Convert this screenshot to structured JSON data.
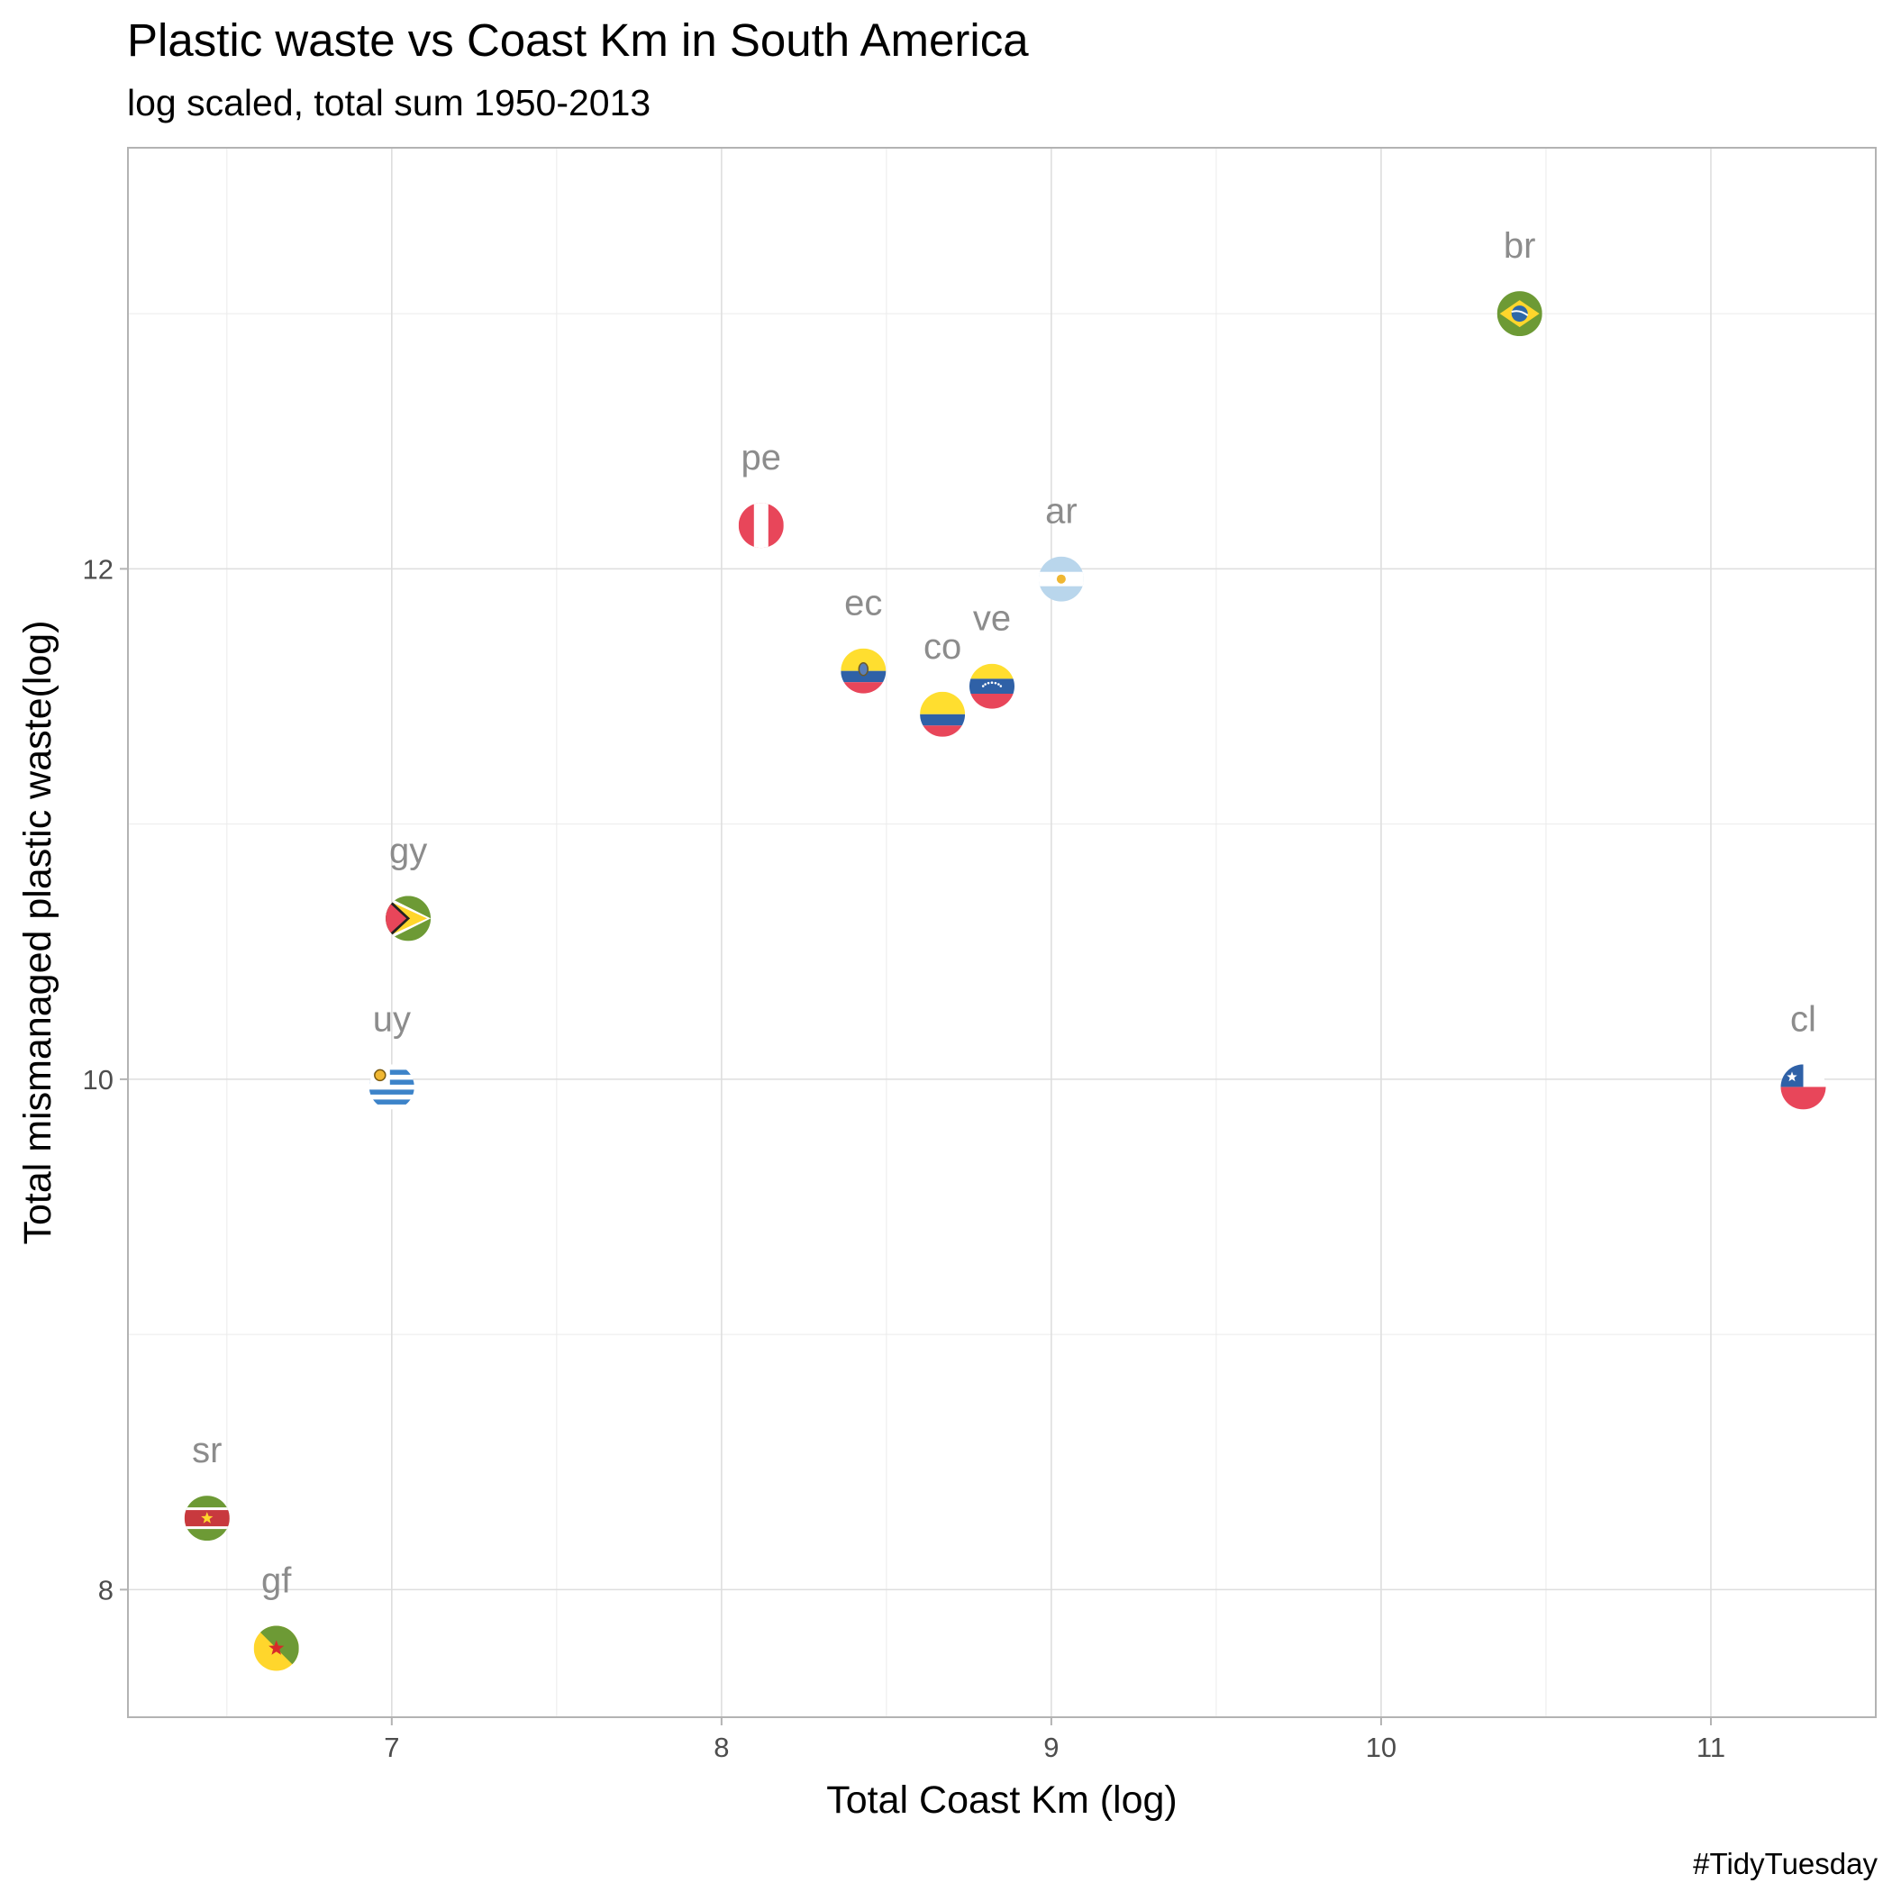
{
  "chart_data": {
    "type": "scatter",
    "title": "Plastic waste vs Coast Km in South America",
    "subtitle": "log scaled, total sum 1950-2013",
    "xlabel": "Total Coast Km (log)",
    "ylabel": "Total mismanaged plastic waste(log)",
    "caption": "#TidyTuesday",
    "xlim": [
      6.2,
      11.5
    ],
    "ylim": [
      7.5,
      13.65
    ],
    "x_ticks": [
      7,
      8,
      9,
      10,
      11
    ],
    "y_ticks": [
      8,
      10,
      12
    ],
    "grid": true,
    "legend": "none",
    "points": [
      {
        "label": "br",
        "x": 10.42,
        "y": 13.0,
        "flag": "brazil-flag-icon"
      },
      {
        "label": "pe",
        "x": 8.12,
        "y": 12.17,
        "flag": "peru-flag-icon"
      },
      {
        "label": "ar",
        "x": 9.03,
        "y": 11.96,
        "flag": "argentina-flag-icon"
      },
      {
        "label": "ec",
        "x": 8.43,
        "y": 11.6,
        "flag": "ecuador-flag-icon"
      },
      {
        "label": "co",
        "x": 8.67,
        "y": 11.43,
        "flag": "colombia-flag-icon"
      },
      {
        "label": "ve",
        "x": 8.82,
        "y": 11.54,
        "flag": "venezuela-flag-icon"
      },
      {
        "label": "gy",
        "x": 7.05,
        "y": 10.63,
        "flag": "guyana-flag-icon"
      },
      {
        "label": "uy",
        "x": 7.0,
        "y": 9.97,
        "flag": "uruguay-flag-icon"
      },
      {
        "label": "cl",
        "x": 11.28,
        "y": 9.97,
        "flag": "chile-flag-icon"
      },
      {
        "label": "sr",
        "x": 6.44,
        "y": 8.28,
        "flag": "suriname-flag-icon"
      },
      {
        "label": "gf",
        "x": 6.65,
        "y": 7.77,
        "flag": "french-guiana-flag-icon"
      }
    ]
  }
}
